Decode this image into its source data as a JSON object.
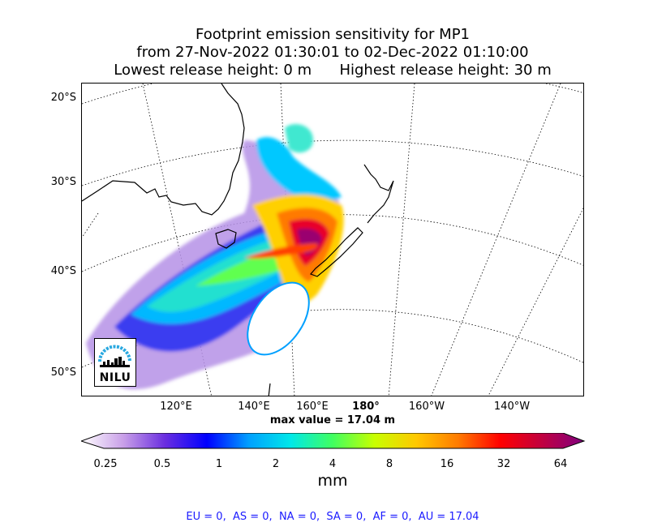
{
  "title": {
    "line1": "Footprint emission sensitivity for MP1",
    "line2": "from 27-Nov-2022 01:30:01 to 02-Dec-2022 01:10:00",
    "line3": "Lowest release height: 0 m      Highest release height: 30 m"
  },
  "map": {
    "lat_labels": [
      "20°S",
      "30°S",
      "40°S",
      "50°S"
    ],
    "lon_labels": [
      "120°E",
      "140°E",
      "160°E",
      "180°",
      "160°W",
      "140°W"
    ],
    "max_value_text": "max value = 17.04 m",
    "logo_text": "NILU"
  },
  "colorbar": {
    "ticks": [
      "0.25",
      "0.5",
      "1",
      "2",
      "4",
      "8",
      "16",
      "32",
      "64"
    ],
    "unit": "mm",
    "colors": [
      "#ffffff",
      "#c9a0e8",
      "#6a2ee0",
      "#0000ff",
      "#00a0ff",
      "#00e8e8",
      "#40ff60",
      "#c8ff00",
      "#ffc800",
      "#ff7a00",
      "#ff0000",
      "#c00040",
      "#800080"
    ]
  },
  "regions_text": "EU = 0,  AS = 0,  NA = 0,  SA = 0,  AF = 0,  AU = 17.04"
}
